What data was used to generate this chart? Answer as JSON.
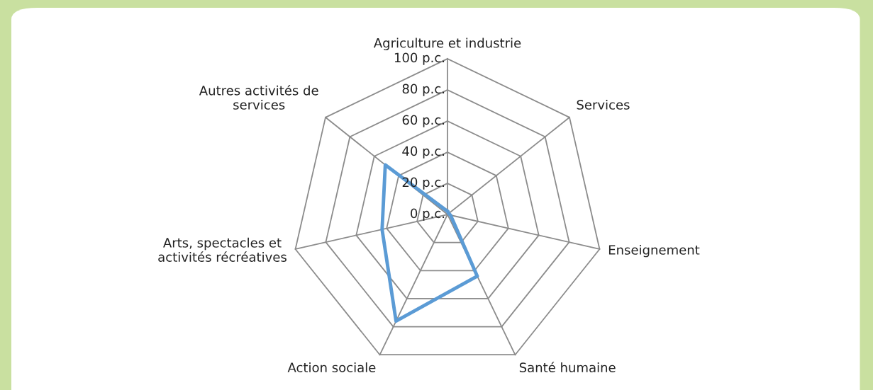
{
  "chart_data": {
    "type": "radar",
    "categories": [
      "Agriculture et industrie",
      "Services",
      "Enseignement",
      "Santé humaine",
      "Action sociale",
      "Arts, spectacles et\nactivités récréatives",
      "Autres activités de\nservices"
    ],
    "series": [
      {
        "color": "#5b9bd5",
        "values": [
          2,
          1,
          2,
          44,
          76,
          43,
          51
        ]
      }
    ],
    "ylim": [
      0,
      100
    ],
    "yticks": [
      {
        "value": 0,
        "label": "0 p.c."
      },
      {
        "value": 20,
        "label": "20 p.c."
      },
      {
        "value": 40,
        "label": "40 p.c."
      },
      {
        "value": 60,
        "label": "60 p.c."
      },
      {
        "value": 80,
        "label": "80 p.c."
      },
      {
        "value": 100,
        "label": "100 p.c."
      }
    ],
    "grid": true,
    "marker": "none",
    "line_style": "solid"
  }
}
